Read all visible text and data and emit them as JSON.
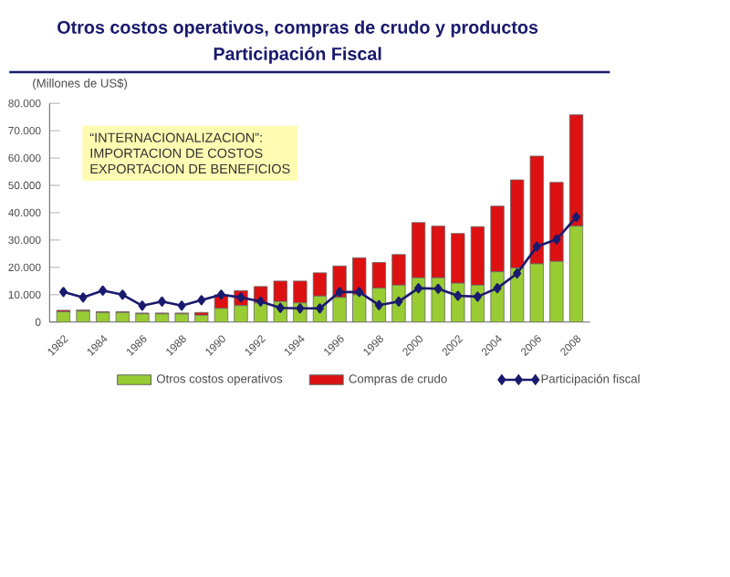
{
  "chart_data": {
    "type": "bar",
    "stacked": true,
    "title": "Otros costos operativos, compras de crudo y productos",
    "subtitle": "Participación Fiscal",
    "ylabel": "(Millones de US$)",
    "categories": [
      "1982",
      null,
      "1984",
      null,
      "1986",
      null,
      "1988",
      null,
      "1990",
      null,
      "1992",
      null,
      "1994",
      null,
      "1996",
      null,
      "1998",
      null,
      "2000",
      null,
      "2002",
      null,
      "2004",
      null,
      "2006",
      null,
      "2008"
    ],
    "series": [
      {
        "name": "Otros costos operativos",
        "color": "#99cc33",
        "values": [
          3800,
          4000,
          3500,
          3500,
          3000,
          3000,
          3000,
          2500,
          5000,
          6000,
          7000,
          7500,
          7000,
          9500,
          9000,
          10000,
          12400,
          13500,
          16200,
          16200,
          14200,
          13500,
          18400,
          19800,
          21300,
          22200,
          35100
        ]
      },
      {
        "name": "Compras de crudo",
        "color": "#dd1111",
        "values": [
          500,
          400,
          300,
          300,
          300,
          300,
          300,
          1000,
          5000,
          5500,
          6000,
          7500,
          8000,
          8500,
          11500,
          13500,
          9400,
          11200,
          20200,
          18900,
          18200,
          21400,
          24000,
          32200,
          39400,
          28900,
          40700
        ]
      },
      {
        "name": "Participación fiscal",
        "type": "line",
        "marker": "diamond",
        "color": "#1a1a6e",
        "values": [
          11000,
          9000,
          11500,
          10000,
          6000,
          7500,
          6000,
          8000,
          10000,
          9000,
          7500,
          5200,
          5000,
          5000,
          11000,
          11000,
          6200,
          7500,
          12400,
          12200,
          9600,
          9300,
          12400,
          17800,
          27600,
          30200,
          38400
        ]
      }
    ],
    "ylim": [
      0,
      80000
    ],
    "yticks": [
      {
        "value": 0,
        "label": "0"
      },
      {
        "value": 10000,
        "label": "10.000"
      },
      {
        "value": 20000,
        "label": "20.000"
      },
      {
        "value": 30000,
        "label": "30.000"
      },
      {
        "value": 40000,
        "label": "40.000"
      },
      {
        "value": 50000,
        "label": "50.000"
      },
      {
        "value": 60000,
        "label": "60.000"
      },
      {
        "value": 70000,
        "label": "70.000"
      },
      {
        "value": 80000,
        "label": "80.000"
      }
    ],
    "annotations": [
      "“INTERNACIONALIZACION”:",
      "IMPORTACION DE COSTOS",
      "EXPORTACION DE BENEFICIOS"
    ],
    "legend": "bottom",
    "grid": false
  }
}
